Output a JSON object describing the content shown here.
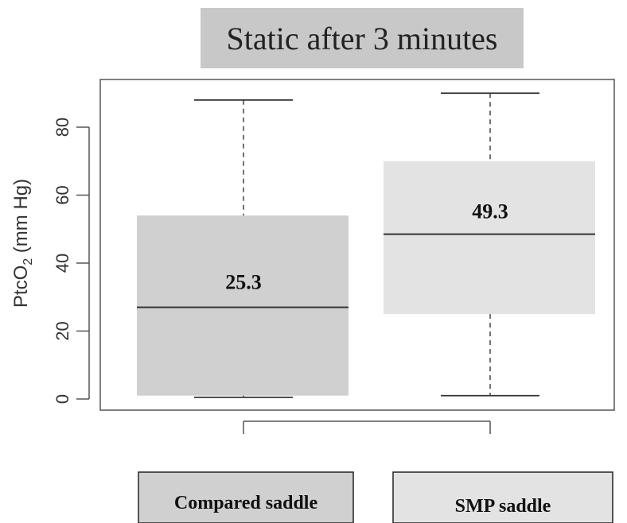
{
  "chart_data": {
    "type": "boxplot",
    "title": "Static after 3 minutes",
    "ylabel_main": "PtcO",
    "ylabel_sub": "2",
    "ylabel_unit": " (mm Hg)",
    "xlabel": "",
    "ylim": [
      -3,
      93
    ],
    "yticks": [
      0,
      20,
      40,
      60,
      80
    ],
    "grid": false,
    "series": [
      {
        "name": "Compared saddle",
        "min": 0.5,
        "q1": 1,
        "median": 27,
        "q3": 54,
        "max": 88,
        "label": "25.3",
        "color": "#d0d0d0"
      },
      {
        "name": "SMP saddle",
        "min": 1,
        "q1": 25,
        "median": 48.5,
        "q3": 70,
        "max": 90,
        "label": "49.3",
        "color": "#e3e3e3"
      }
    ],
    "colors": {
      "title_box": "#c8c8c8",
      "axis": "#555555",
      "median_line": "#333333",
      "legend_border": "#222222"
    }
  }
}
